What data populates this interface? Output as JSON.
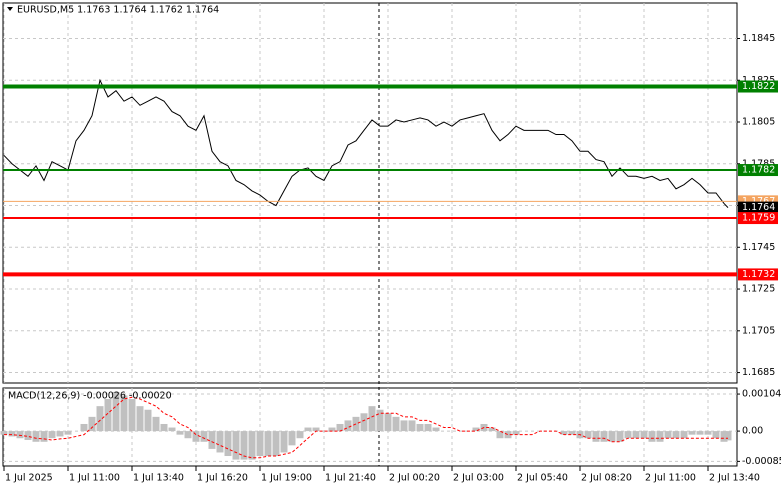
{
  "chart_data": [
    {
      "type": "line",
      "title": "EURUSD,M5  1.1763 1.1764 1.1762 1.1764",
      "x": [
        0,
        4,
        8,
        12,
        16,
        20,
        24,
        28,
        32,
        36,
        40,
        44,
        48,
        52,
        56,
        60,
        64,
        68,
        72,
        76,
        80,
        84,
        88,
        92,
        96,
        100,
        104,
        108,
        112,
        116,
        120,
        124,
        128,
        132,
        136,
        140,
        144,
        148,
        152,
        156,
        160,
        164,
        168,
        172,
        176,
        180,
        184,
        188,
        192,
        196,
        200,
        204,
        208,
        212,
        216,
        220,
        224,
        228,
        232,
        236,
        240,
        244,
        248,
        252,
        256,
        260,
        264,
        268,
        272,
        276,
        280,
        284,
        288,
        292,
        296,
        300,
        304,
        308,
        312,
        316,
        320,
        324,
        328,
        332,
        336,
        340,
        344,
        348,
        352,
        356,
        360,
        362
      ],
      "series": [
        {
          "name": "EURUSD",
          "color": "#000000",
          "values": [
            1.1789,
            1.1785,
            1.1782,
            1.1779,
            1.1784,
            1.1777,
            1.1786,
            1.1784,
            1.1782,
            1.1796,
            1.1801,
            1.1808,
            1.1825,
            1.1817,
            1.182,
            1.1815,
            1.1817,
            1.1813,
            1.1815,
            1.1817,
            1.1815,
            1.181,
            1.1808,
            1.1803,
            1.1801,
            1.1808,
            1.1791,
            1.1786,
            1.1784,
            1.1777,
            1.1775,
            1.1772,
            1.177,
            1.1767,
            1.1765,
            1.1772,
            1.1779,
            1.1782,
            1.1783,
            1.1779,
            1.1777,
            1.1784,
            1.1786,
            1.1794,
            1.1796,
            1.1801,
            1.1806,
            1.1803,
            1.1803,
            1.1806,
            1.1805,
            1.1806,
            1.1807,
            1.1806,
            1.1803,
            1.1805,
            1.1803,
            1.1806,
            1.1807,
            1.1808,
            1.1809,
            1.1801,
            1.1796,
            1.1799,
            1.1803,
            1.1801,
            1.1801,
            1.1801,
            1.1801,
            1.1799,
            1.1799,
            1.1796,
            1.1791,
            1.1791,
            1.1787,
            1.1786,
            1.1779,
            1.1783,
            1.1779,
            1.1779,
            1.1778,
            1.1779,
            1.1777,
            1.1778,
            1.1773,
            1.1775,
            1.1778,
            1.1775,
            1.1771,
            1.1771,
            1.1766,
            1.1764
          ]
        }
      ],
      "levels": [
        {
          "value": 1.1822,
          "color": "#008000",
          "width": 4
        },
        {
          "value": 1.1782,
          "color": "#008000",
          "width": 2
        },
        {
          "value": 1.1767,
          "color": "#f4a460",
          "width": 1
        },
        {
          "value": 1.1764,
          "color": "#000000",
          "width": 0
        },
        {
          "value": 1.1759,
          "color": "#ff0000",
          "width": 2
        },
        {
          "value": 1.1732,
          "color": "#ff0000",
          "width": 4
        }
      ],
      "xlim": [
        0,
        366
      ],
      "xticks": [
        {
          "value": 0,
          "label": "1 Jul 2025"
        },
        {
          "value": 32,
          "label": "1 Jul 11:00"
        },
        {
          "value": 64,
          "label": "1 Jul 13:40"
        },
        {
          "value": 96,
          "label": "1 Jul 16:20"
        },
        {
          "value": 128,
          "label": "1 Jul 19:00"
        },
        {
          "value": 160,
          "label": "1 Jul 21:40"
        },
        {
          "value": 192,
          "label": "2 Jul 00:20"
        },
        {
          "value": 224,
          "label": "2 Jul 03:00"
        },
        {
          "value": 256,
          "label": "2 Jul 05:40"
        },
        {
          "value": 288,
          "label": "2 Jul 08:20"
        },
        {
          "value": 320,
          "label": "2 Jul 11:00"
        },
        {
          "value": 352,
          "label": "2 Jul 13:40"
        }
      ],
      "ylim": [
        1.168,
        1.1862
      ],
      "yticks": [
        1.1845,
        1.1825,
        1.1805,
        1.1785,
        1.1765,
        1.1745,
        1.1725,
        1.1705,
        1.1685
      ],
      "grid": true
    },
    {
      "type": "macd",
      "title": "MACD(12,26,9) -0.00026 -0.00020",
      "series": [
        {
          "name": "MACD",
          "color": "#c0c0c0",
          "values": [
            -0.0001,
            -0.00015,
            -0.0002,
            -0.00025,
            -0.0003,
            -0.0003,
            -0.0002,
            -0.00015,
            -0.0001,
            0,
            0.0002,
            0.0004,
            0.0007,
            0.0009,
            0.0011,
            0.001,
            0.0009,
            0.0007,
            0.0006,
            0.0004,
            0.0002,
            0.0001,
            -0.0001,
            -0.0002,
            -0.0003,
            -0.0003,
            -0.0005,
            -0.0006,
            -0.0007,
            -0.0008,
            -0.0008,
            -0.0008,
            -0.0007,
            -0.0007,
            -0.0007,
            -0.0006,
            -0.0004,
            -0.0002,
            0.0001,
            0.0001,
            0,
            0.0001,
            0.0002,
            0.0003,
            0.0004,
            0.0005,
            0.0007,
            0.0006,
            0.0005,
            0.0004,
            0.0003,
            0.0003,
            0.0002,
            0.0002,
            0.0001,
            0,
            0,
            0,
            0,
            0.0001,
            0.0002,
            0.0001,
            -0.0002,
            -0.0002,
            -0.0001,
            0,
            0,
            0,
            0,
            0,
            -0.0001,
            -0.0001,
            -0.0002,
            -0.0002,
            -0.0003,
            -0.0003,
            -0.0003,
            -0.0003,
            -0.0002,
            -0.0002,
            -0.0002,
            -0.0003,
            -0.0003,
            -0.0002,
            -0.0002,
            -0.0002,
            -0.0001,
            -0.0001,
            -0.0001,
            -0.0002,
            -0.0003,
            -0.00026
          ]
        },
        {
          "name": "Signal",
          "color": "#ff0000",
          "values": [
            -0.0001,
            -0.0001,
            -0.00012,
            -0.00015,
            -0.0002,
            -0.00022,
            -0.00025,
            -0.00022,
            -0.0002,
            -0.00015,
            -0.0001,
            0.0001,
            0.0003,
            0.0005,
            0.0007,
            0.0009,
            0.00095,
            0.0009,
            0.0008,
            0.0007,
            0.0005,
            0.0004,
            0.0002,
            0.0001,
            -0.0001,
            -0.0002,
            -0.0003,
            -0.0004,
            -0.0005,
            -0.0006,
            -0.0007,
            -0.00075,
            -0.00075,
            -0.0007,
            -0.0007,
            -0.00065,
            -0.0006,
            -0.0004,
            -0.0002,
            0,
            0,
            0,
            0,
            0.0001,
            0.0002,
            0.0003,
            0.0004,
            0.0005,
            0.0005,
            0.0005,
            0.0004,
            0.0004,
            0.0003,
            0.0003,
            0.0002,
            0.0001,
            0.0001,
            0,
            0,
            0,
            0.0001,
            0.0001,
            0,
            -0.0001,
            -0.0001,
            -0.0001,
            -0.0001,
            0,
            0,
            0,
            -0.0001,
            -0.0001,
            -0.0001,
            -0.0002,
            -0.0002,
            -0.0002,
            -0.0003,
            -0.0003,
            -0.0002,
            -0.0002,
            -0.0002,
            -0.0002,
            -0.0002,
            -0.0002,
            -0.0002,
            -0.0002,
            -0.0002,
            -0.0002,
            -0.0002,
            -0.0002,
            -0.0002,
            -0.0002
          ]
        }
      ],
      "ylim": [
        -0.00098,
        0.00121
      ],
      "yticks": [
        0.00104,
        {
          "value": 0,
          "label": "0.00"
        },
        -0.00085
      ],
      "grid": true
    }
  ]
}
